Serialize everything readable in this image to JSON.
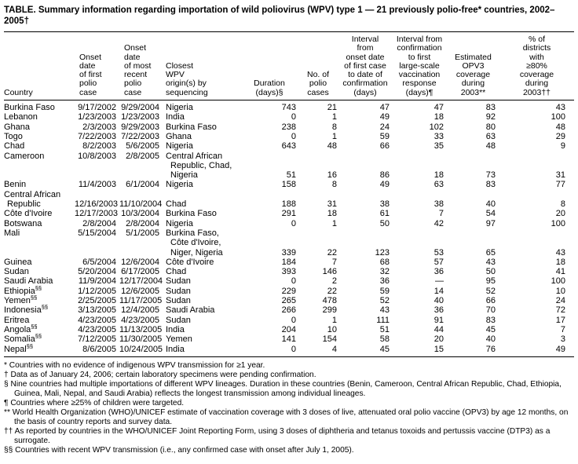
{
  "title": "TABLE. Summary information regarding importation of wild poliovirus (WPV) type 1 — 21 previously polio-free* countries, 2002–2005†",
  "table": {
    "columns": [
      {
        "id": "country",
        "label": "Country"
      },
      {
        "id": "onset-first",
        "label": "Onset\ndate\nof first\npolio\ncase"
      },
      {
        "id": "onset-recent",
        "label": "Onset\ndate\nof most\nrecent\npolio\ncase"
      },
      {
        "id": "origin",
        "label": "Closest\nWPV\norigin(s) by\nsequencing"
      },
      {
        "id": "duration",
        "label": "Duration\n(days)§"
      },
      {
        "id": "cases",
        "label": "No. of\npolio\ncases"
      },
      {
        "id": "interval-confirmation",
        "label": "Interval\nfrom\nonset date\nof first case\nto date of\nconfirmation\n(days)"
      },
      {
        "id": "interval-response",
        "label": "Interval from\nconfirmation\nto first\nlarge-scale\nvaccination\nresponse\n(days)¶"
      },
      {
        "id": "opv3",
        "label": "Estimated\nOPV3\ncoverage\nduring\n2003**"
      },
      {
        "id": "districts",
        "label": "% of\ndistricts\nwith\n≥80%\ncoverage\nduring\n2003††"
      }
    ],
    "rows": [
      {
        "country": "Burkina Faso",
        "onset_first": "9/17/2002",
        "onset_recent": "9/29/2004",
        "origin": "Nigeria",
        "duration": "743",
        "cases": "21",
        "interval_confirmation": "47",
        "interval_response": "47",
        "opv3": "83",
        "districts": "43"
      },
      {
        "country": "Lebanon",
        "onset_first": "1/23/2003",
        "onset_recent": "1/23/2003",
        "origin": "India",
        "duration": "0",
        "cases": "1",
        "interval_confirmation": "49",
        "interval_response": "18",
        "opv3": "92",
        "districts": "100"
      },
      {
        "country": "Ghana",
        "onset_first": "2/3/2003",
        "onset_recent": "9/29/2003",
        "origin": "Burkina Faso",
        "duration": "238",
        "cases": "8",
        "interval_confirmation": "24",
        "interval_response": "102",
        "opv3": "80",
        "districts": "48"
      },
      {
        "country": "Togo",
        "onset_first": "7/22/2003",
        "onset_recent": "7/22/2003",
        "origin": "Ghana",
        "duration": "0",
        "cases": "1",
        "interval_confirmation": "59",
        "interval_response": "33",
        "opv3": "63",
        "districts": "29"
      },
      {
        "country": "Chad",
        "onset_first": "8/2/2003",
        "onset_recent": "5/6/2005",
        "origin": "Nigeria",
        "duration": "643",
        "cases": "48",
        "interval_confirmation": "66",
        "interval_response": "35",
        "opv3": "48",
        "districts": "9"
      },
      {
        "country": "Cameroon",
        "onset_first": "10/8/2003",
        "onset_recent": "2/8/2005",
        "origin": "Central African Republic, Chad, Nigeria",
        "duration": "51",
        "cases": "16",
        "interval_confirmation": "86",
        "interval_response": "18",
        "opv3": "73",
        "districts": "31"
      },
      {
        "country": "Benin",
        "onset_first": "11/4/2003",
        "onset_recent": "6/1/2004",
        "origin": "Nigeria",
        "duration": "158",
        "cases": "8",
        "interval_confirmation": "49",
        "interval_response": "63",
        "opv3": "83",
        "districts": "77"
      },
      {
        "country": "Central African Republic",
        "valign": "bottom",
        "onset_first": "12/16/2003",
        "onset_recent": "11/10/2004",
        "origin": "Chad",
        "duration": "188",
        "cases": "31",
        "interval_confirmation": "38",
        "interval_response": "38",
        "opv3": "40",
        "districts": "8"
      },
      {
        "country": "Côte d'Ivoire",
        "onset_first": "12/17/2003",
        "onset_recent": "10/3/2004",
        "origin": "Burkina Faso",
        "duration": "291",
        "cases": "18",
        "interval_confirmation": "61",
        "interval_response": "7",
        "opv3": "54",
        "districts": "20"
      },
      {
        "country": "Botswana",
        "onset_first": "2/8/2004",
        "onset_recent": "2/8/2004",
        "origin": "Nigeria",
        "duration": "0",
        "cases": "1",
        "interval_confirmation": "50",
        "interval_response": "42",
        "opv3": "97",
        "districts": "100"
      },
      {
        "country": "Mali",
        "onset_first": "5/15/2004",
        "onset_recent": "5/1/2005",
        "origin": "Burkina Faso, Côte d'Ivoire, Niger, Nigeria",
        "duration": "339",
        "cases": "22",
        "interval_confirmation": "123",
        "interval_response": "53",
        "opv3": "65",
        "districts": "43"
      },
      {
        "country": "Guinea",
        "onset_first": "6/5/2004",
        "onset_recent": "12/6/2004",
        "origin": "Côte d'Ivoire",
        "duration": "184",
        "cases": "7",
        "interval_confirmation": "68",
        "interval_response": "57",
        "opv3": "43",
        "districts": "18"
      },
      {
        "country": "Sudan",
        "onset_first": "5/20/2004",
        "onset_recent": "6/17/2005",
        "origin": "Chad",
        "duration": "393",
        "cases": "146",
        "interval_confirmation": "32",
        "interval_response": "36",
        "opv3": "50",
        "districts": "41"
      },
      {
        "country": "Saudi Arabia",
        "onset_first": "11/9/2004",
        "onset_recent": "12/17/2004",
        "origin": "Sudan",
        "duration": "0",
        "cases": "2",
        "interval_confirmation": "36",
        "interval_response": "—",
        "opv3": "95",
        "districts": "100"
      },
      {
        "country": "Ethiopia",
        "marker": "§§",
        "onset_first": "1/12/2005",
        "onset_recent": "12/6/2005",
        "origin": "Sudan",
        "duration": "229",
        "cases": "22",
        "interval_confirmation": "59",
        "interval_response": "14",
        "opv3": "52",
        "districts": "10"
      },
      {
        "country": "Yemen",
        "marker": "§§",
        "onset_first": "2/25/2005",
        "onset_recent": "11/17/2005",
        "origin": "Sudan",
        "duration": "265",
        "cases": "478",
        "interval_confirmation": "52",
        "interval_response": "40",
        "opv3": "66",
        "districts": "24"
      },
      {
        "country": "Indonesia",
        "marker": "§§",
        "onset_first": "3/13/2005",
        "onset_recent": "12/4/2005",
        "origin": "Saudi Arabia",
        "duration": "266",
        "cases": "299",
        "interval_confirmation": "43",
        "interval_response": "36",
        "opv3": "70",
        "districts": "72"
      },
      {
        "country": "Eritrea",
        "onset_first": "4/23/2005",
        "onset_recent": "4/23/2005",
        "origin": "Sudan",
        "duration": "0",
        "cases": "1",
        "interval_confirmation": "111",
        "interval_response": "91",
        "opv3": "83",
        "districts": "17"
      },
      {
        "country": "Angola",
        "marker": "§§",
        "onset_first": "4/23/2005",
        "onset_recent": "11/13/2005",
        "origin": "India",
        "duration": "204",
        "cases": "10",
        "interval_confirmation": "51",
        "interval_response": "44",
        "opv3": "45",
        "districts": "7"
      },
      {
        "country": "Somalia",
        "marker": "§§",
        "onset_first": "7/12/2005",
        "onset_recent": "11/30/2005",
        "origin": "Yemen",
        "duration": "141",
        "cases": "154",
        "interval_confirmation": "58",
        "interval_response": "20",
        "opv3": "40",
        "districts": "3"
      },
      {
        "country": "Nepal",
        "marker": "§§",
        "onset_first": "8/6/2005",
        "onset_recent": "10/24/2005",
        "origin": "India",
        "duration": "0",
        "cases": "4",
        "interval_confirmation": "45",
        "interval_response": "15",
        "opv3": "76",
        "districts": "49"
      }
    ]
  },
  "footnotes": [
    {
      "marker": "*",
      "text": "Countries with no evidence of indigenous WPV transmission for ≥1 year."
    },
    {
      "marker": "†",
      "text": "Data as of January 24, 2006; certain laboratory specimens were pending confirmation."
    },
    {
      "marker": "§",
      "text": "Nine countries had multiple importations of different WPV lineages. Duration in these countries (Benin, Cameroon, Central African Republic, Chad, Ethiopia, Guinea, Mali, Nepal, and Saudi Arabia) reflects the longest transmission among individual lineages."
    },
    {
      "marker": "¶",
      "text": "Countries where ≥25% of children were targeted."
    },
    {
      "marker": "**",
      "text": "World Health Organization (WHO)/UNICEF estimate of vaccination coverage with 3 doses of live, attenuated oral polio vaccine (OPV3) by age 12 months, on the basis of country reports and survey data."
    },
    {
      "marker": "††",
      "text": "As reported by countries in the WHO/UNICEF Joint Reporting Form, using 3 doses of diphtheria and tetanus toxoids and pertussis vaccine (DTP3) as a surrogate."
    },
    {
      "marker": "§§",
      "text": "Countries with recent WPV transmission (i.e., any confirmed case with onset after July 1, 2005)."
    }
  ]
}
